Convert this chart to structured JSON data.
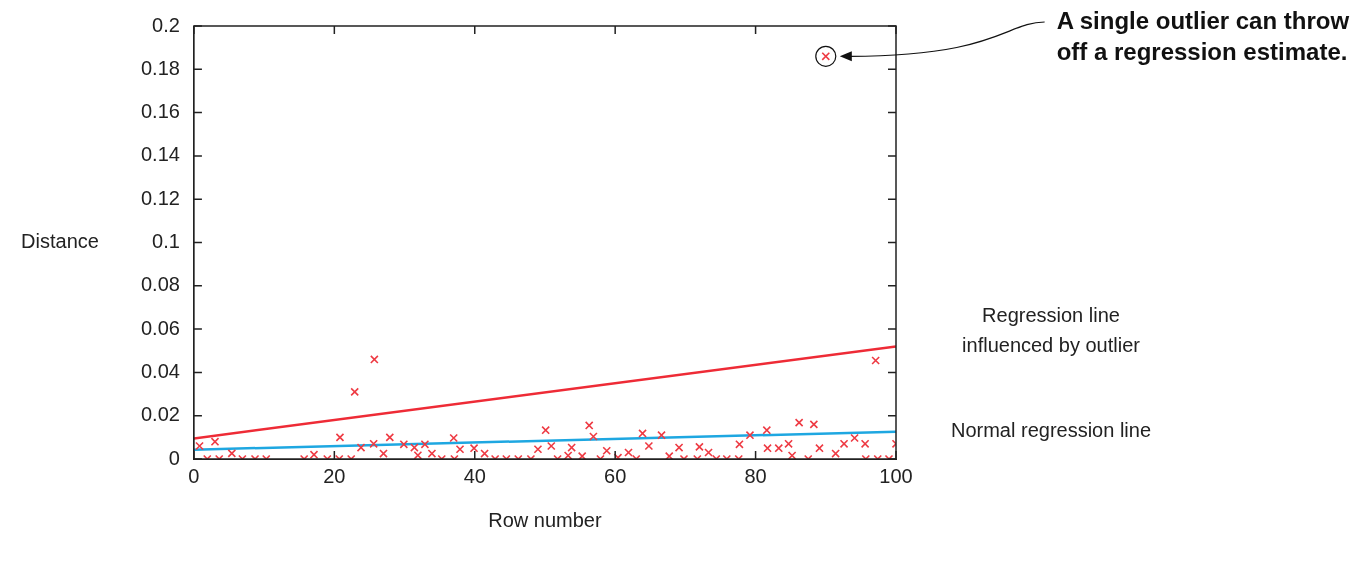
{
  "chart_data": {
    "type": "scatter",
    "xlabel": "Row number",
    "ylabel": "Distance",
    "xlim": [
      0,
      100
    ],
    "xticks": [
      0,
      20,
      40,
      60,
      80,
      100
    ],
    "ylim": [
      0,
      0.2
    ],
    "yticks": [
      0,
      0.02,
      0.04,
      0.06,
      0.08,
      0.1,
      0.12,
      0.14,
      0.16,
      0.18,
      0.2
    ],
    "grid": false,
    "legend": false,
    "annotations": [
      "A single outlier can throw off a regression estimate."
    ],
    "series": [
      {
        "marker": "cross",
        "color": "#ee3a43",
        "x": [
          0.8,
          1.9,
          3,
          3.6,
          5.4,
          6.9,
          8.7,
          10.3,
          15.7,
          17.1,
          19,
          20.7,
          20.8,
          22.4,
          22.9,
          23.8,
          25.6,
          25.7,
          27,
          27.9,
          29.9,
          31.4,
          31.9,
          32.9,
          33.9,
          35.3,
          37,
          37.1,
          37.9,
          39.9,
          41.4,
          42.9,
          44.5,
          46.2,
          48,
          49,
          50.1,
          50.9,
          51.8,
          53.3,
          53.8,
          55.3,
          56.3,
          56.9,
          57.9,
          58.8,
          60.4,
          61.9,
          63,
          63.9,
          64.8,
          66.6,
          67.7,
          69.1,
          69.8,
          71.7,
          72,
          73.3,
          74.4,
          75.9,
          77.6,
          77.7,
          79.2,
          81.6,
          81.7,
          83.3,
          84.7,
          85.2,
          86.2,
          87.5,
          88.3,
          89.1,
          90,
          91.4,
          92.6,
          94.1,
          95.6,
          95.7,
          97.1,
          97.4,
          99,
          100
        ],
        "values": [
          0.006,
          0,
          0.008,
          0,
          0.0026,
          0,
          0,
          0,
          0,
          0.002,
          0,
          0,
          0.01,
          0,
          0.031,
          0.0053,
          0.007,
          0.046,
          0.0025,
          0.01,
          0.0068,
          0.0053,
          0.0017,
          0.0068,
          0.0025,
          0,
          0.0097,
          0,
          0.0045,
          0.005,
          0.0025,
          0,
          0,
          0,
          0,
          0.0045,
          0.0133,
          0.006,
          0,
          0.0016,
          0.0053,
          0.0013,
          0.0155,
          0.0104,
          0,
          0.0038,
          0.0006,
          0.003,
          0,
          0.0118,
          0.006,
          0.011,
          0.0013,
          0.0053,
          0,
          0,
          0.0056,
          0.003,
          0,
          0,
          0,
          0.0068,
          0.011,
          0.0133,
          0.005,
          0.005,
          0.007,
          0.0016,
          0.0168,
          0,
          0.016,
          0.005,
          0.186,
          0.0025,
          0.007,
          0.0097,
          0.007,
          0,
          0.0455,
          0,
          0,
          0.007
        ]
      },
      {
        "type": "line",
        "marker": "none",
        "name": "Regression line influenced by outlier",
        "color": "#ee2b36",
        "x": [
          0,
          100
        ],
        "values": [
          0.0095,
          0.052
        ]
      },
      {
        "type": "line",
        "marker": "none",
        "name": "Normal regression line",
        "color": "#1ea7e1",
        "x": [
          0,
          100
        ],
        "values": [
          0.0043,
          0.0126
        ]
      }
    ]
  }
}
